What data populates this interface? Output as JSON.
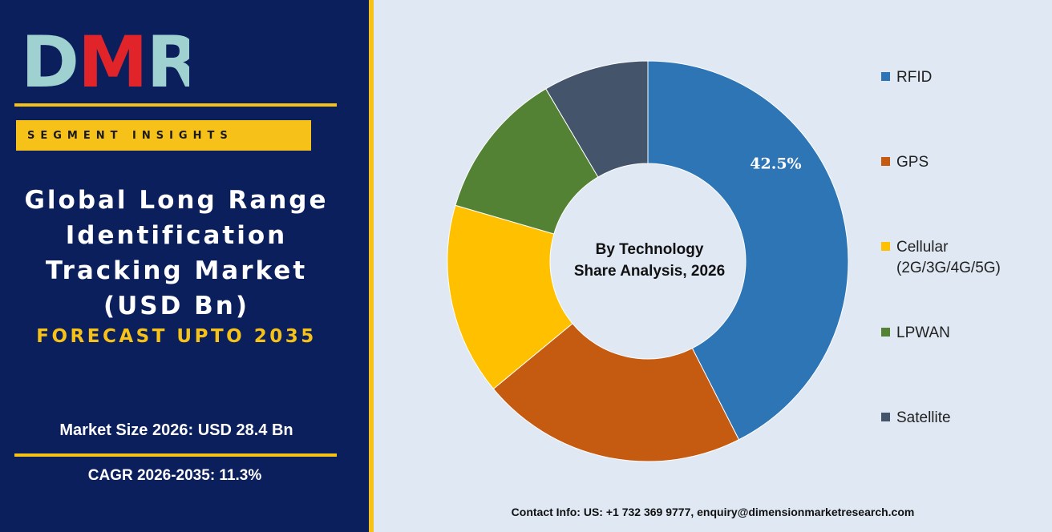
{
  "brand": {
    "logo_text": "DMR",
    "colors": {
      "navy": "#0b1f5c",
      "gold": "#f6c119",
      "logo_d": "#9fd1d1",
      "logo_m": "#e0242a",
      "logo_r": "#9fd1d1"
    }
  },
  "sidebar": {
    "badge": "SEGMENT INSIGHTS",
    "title_lines": [
      "Global Long Range",
      "Identification",
      "Tracking Market",
      "(USD Bn)"
    ],
    "forecast": "FORECAST UPTO 2035",
    "market_size": "Market Size 2026: USD 28.4 Bn",
    "cagr": "CAGR 2026-2035: 11.3%"
  },
  "chart_data": {
    "type": "pie",
    "donut": true,
    "title_lines": [
      "By Technology",
      "Share Analysis, 2026"
    ],
    "categories": [
      "RFID",
      "GPS",
      "Cellular (2G/3G/4G/5G)",
      "LPWAN",
      "Satellite"
    ],
    "values": [
      42.5,
      21.5,
      15.5,
      12.0,
      8.5
    ],
    "colors": [
      "#2e75b6",
      "#c55a11",
      "#ffc000",
      "#548235",
      "#44546a"
    ],
    "data_labels": [
      "42.5%",
      "",
      "",
      "",
      ""
    ],
    "legend": {
      "position": "right",
      "items": [
        {
          "lines": [
            "RFID"
          ],
          "color": "#2e75b6"
        },
        {
          "lines": [
            "GPS"
          ],
          "color": "#c55a11"
        },
        {
          "lines": [
            "Cellular",
            "(2G/3G/4G/5G)"
          ],
          "color": "#ffc000"
        },
        {
          "lines": [
            "LPWAN"
          ],
          "color": "#548235"
        },
        {
          "lines": [
            "Satellite"
          ],
          "color": "#44546a"
        }
      ]
    }
  },
  "footer": {
    "contact": "Contact Info: US: +1 732 369 9777, enquiry@dimensionmarketresearch.com"
  }
}
